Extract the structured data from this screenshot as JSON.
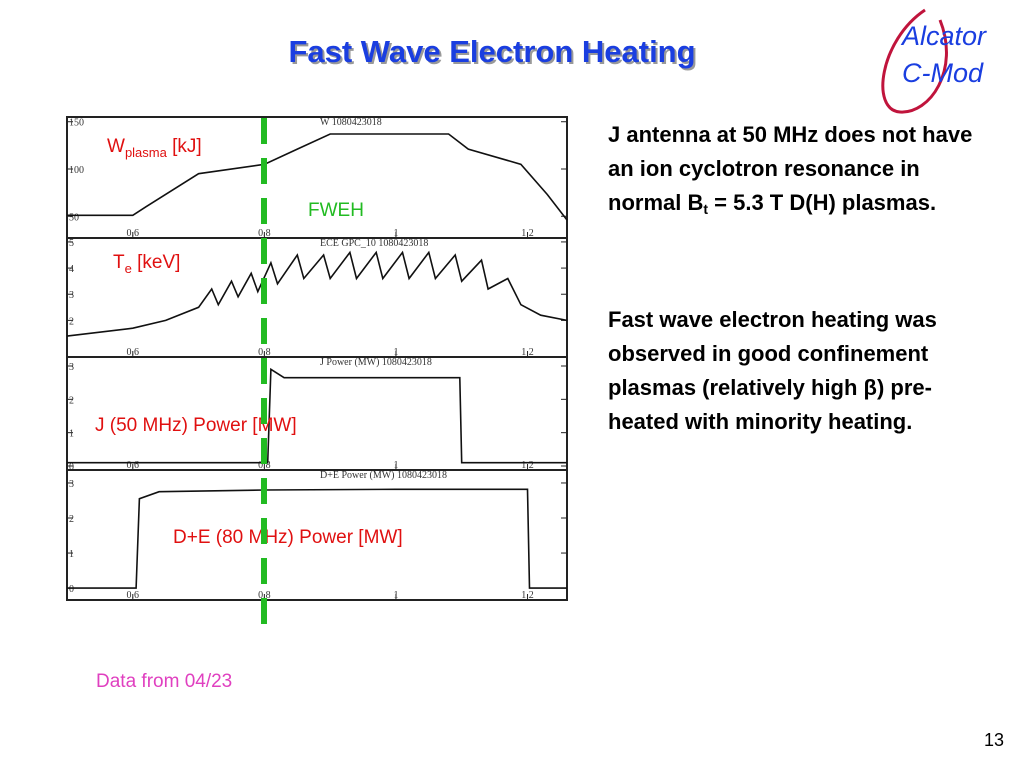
{
  "title": "Fast Wave Electron Heating",
  "logo": {
    "line1": "Alcator",
    "line2": "C-Mod"
  },
  "panels": [
    {
      "title": "W   1080423018",
      "label": {
        "main": "W",
        "sub": "plasma",
        "unit": " [kJ]"
      },
      "xlim": [
        0.5,
        1.26
      ],
      "ylim": [
        27,
        155
      ],
      "xticks": [
        0.6,
        0.8,
        1,
        1.2
      ],
      "yticks": [
        50,
        100,
        150
      ],
      "x": [
        0.5,
        0.6,
        0.62,
        0.7,
        0.8,
        0.85,
        0.9,
        1.08,
        1.11,
        1.19,
        1.23,
        1.26
      ],
      "values": [
        51,
        51,
        60,
        95,
        105,
        121,
        137,
        137,
        121,
        105,
        73,
        46
      ]
    },
    {
      "title": "ECE GPC_10  1080423018",
      "label": {
        "main": "T",
        "sub": "e",
        "unit": " [keV]"
      },
      "xlim": [
        0.5,
        1.26
      ],
      "ylim": [
        0.6,
        5.15
      ],
      "xticks": [
        0.6,
        0.8,
        1,
        1.2
      ],
      "yticks": [
        2,
        3,
        4,
        5
      ],
      "x": [
        0.5,
        0.6,
        0.65,
        0.7,
        0.72,
        0.73,
        0.75,
        0.76,
        0.78,
        0.79,
        0.81,
        0.82,
        0.85,
        0.86,
        0.89,
        0.9,
        0.93,
        0.94,
        0.97,
        0.98,
        1.01,
        1.02,
        1.05,
        1.06,
        1.09,
        1.1,
        1.13,
        1.14,
        1.17,
        1.19,
        1.22,
        1.26
      ],
      "values": [
        1.4,
        1.7,
        2.0,
        2.5,
        3.2,
        2.6,
        3.5,
        2.9,
        3.8,
        3.1,
        4.2,
        3.4,
        4.5,
        3.6,
        4.5,
        3.6,
        4.6,
        3.6,
        4.6,
        3.6,
        4.6,
        3.6,
        4.6,
        3.6,
        4.5,
        3.5,
        4.3,
        3.2,
        3.6,
        2.6,
        2.2,
        2.0
      ]
    },
    {
      "title": "J Power (MW)  1080423018",
      "label": {
        "main": "J (50 MHz) Power [MW]"
      },
      "xlim": [
        0.5,
        1.26
      ],
      "ylim": [
        -0.12,
        3.27
      ],
      "xticks": [
        0.6,
        0.8,
        1,
        1.2
      ],
      "yticks": [
        0,
        1,
        2,
        3
      ],
      "x": [
        0.5,
        0.805,
        0.81,
        0.83,
        0.95,
        1.05,
        1.097,
        1.1,
        1.26
      ],
      "values": [
        0.1,
        0.1,
        2.9,
        2.65,
        2.65,
        2.65,
        2.65,
        0.1,
        0.1
      ]
    },
    {
      "title": "D+E Power (MW)  1080423018",
      "label": {
        "main": "D+E (80 MHz) Power [MW]"
      },
      "xlim": [
        0.5,
        1.26
      ],
      "ylim": [
        -0.34,
        3.37
      ],
      "xticks": [
        0.6,
        0.8,
        1,
        1.2
      ],
      "yticks": [
        0,
        1,
        2,
        3
      ],
      "x": [
        0.5,
        0.605,
        0.61,
        0.64,
        0.8,
        1.0,
        1.2,
        1.203,
        1.26
      ],
      "values": [
        0,
        0,
        2.55,
        2.75,
        2.8,
        2.82,
        2.82,
        0,
        0
      ]
    }
  ],
  "marker_label": "FWEH",
  "note": "Data from 04/23",
  "paragraphs": [
    {
      "text": "J antenna at 50 MHz does not have an ion cyclotron resonance in normal B",
      "sub": "t",
      "tail": " = 5.3 T D(H) plasmas."
    },
    {
      "text": "Fast wave electron heating was observed in good confinement plasmas (relatively high β) pre-heated with minority heating."
    }
  ],
  "page_number": "13"
}
